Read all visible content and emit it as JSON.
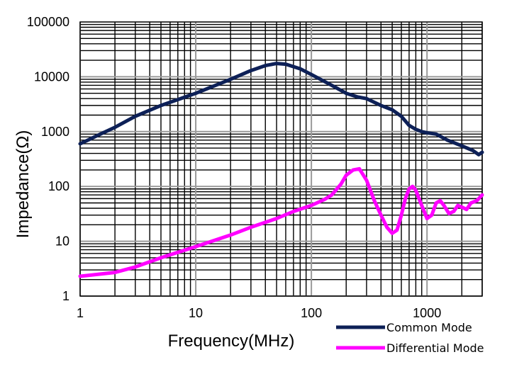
{
  "chart_data": {
    "type": "line",
    "title": "",
    "xlabel": "Frequency(MHz)",
    "ylabel": "Impedance(Ω)",
    "xscale": "log",
    "yscale": "log",
    "xlim": [
      1,
      3000
    ],
    "ylim": [
      1,
      100000
    ],
    "x_tick_values": [
      1,
      10,
      100,
      1000
    ],
    "x_tick_labels": [
      "1",
      "10",
      "100",
      "1000"
    ],
    "y_tick_values": [
      1,
      10,
      100,
      1000,
      10000,
      100000
    ],
    "y_tick_labels": [
      "1",
      "10",
      "100",
      "1000",
      "10000",
      "100000"
    ],
    "grid": true,
    "legend_position": "bottom-right",
    "series": [
      {
        "name": "Common Mode",
        "color": "#0d2057",
        "points": [
          [
            1,
            600
          ],
          [
            1.5,
            900
          ],
          [
            2,
            1200
          ],
          [
            3,
            1900
          ],
          [
            5,
            3000
          ],
          [
            10,
            5000
          ],
          [
            20,
            9000
          ],
          [
            30,
            13000
          ],
          [
            40,
            16000
          ],
          [
            50,
            17500
          ],
          [
            60,
            17000
          ],
          [
            80,
            14000
          ],
          [
            100,
            11000
          ],
          [
            150,
            7000
          ],
          [
            200,
            5000
          ],
          [
            250,
            4300
          ],
          [
            300,
            4000
          ],
          [
            400,
            3000
          ],
          [
            500,
            2500
          ],
          [
            600,
            1900
          ],
          [
            700,
            1300
          ],
          [
            800,
            1100
          ],
          [
            900,
            1000
          ],
          [
            1000,
            950
          ],
          [
            1200,
            900
          ],
          [
            1500,
            700
          ],
          [
            2000,
            550
          ],
          [
            2500,
            450
          ],
          [
            2800,
            380
          ],
          [
            3000,
            420
          ]
        ]
      },
      {
        "name": "Differential Mode",
        "color": "#ff00ff",
        "points": [
          [
            1,
            2.3
          ],
          [
            2,
            2.7
          ],
          [
            3,
            3.4
          ],
          [
            5,
            5
          ],
          [
            10,
            8
          ],
          [
            20,
            13
          ],
          [
            30,
            18
          ],
          [
            50,
            26
          ],
          [
            70,
            35
          ],
          [
            100,
            45
          ],
          [
            130,
            58
          ],
          [
            150,
            70
          ],
          [
            180,
            110
          ],
          [
            200,
            160
          ],
          [
            230,
            200
          ],
          [
            260,
            210
          ],
          [
            300,
            130
          ],
          [
            350,
            55
          ],
          [
            400,
            30
          ],
          [
            450,
            18
          ],
          [
            500,
            14
          ],
          [
            550,
            16
          ],
          [
            600,
            30
          ],
          [
            650,
            60
          ],
          [
            700,
            90
          ],
          [
            750,
            100
          ],
          [
            800,
            85
          ],
          [
            900,
            45
          ],
          [
            1000,
            26
          ],
          [
            1100,
            30
          ],
          [
            1200,
            50
          ],
          [
            1300,
            55
          ],
          [
            1400,
            45
          ],
          [
            1550,
            32
          ],
          [
            1700,
            35
          ],
          [
            1850,
            45
          ],
          [
            2000,
            42
          ],
          [
            2200,
            38
          ],
          [
            2400,
            50
          ],
          [
            2700,
            55
          ],
          [
            3000,
            70
          ]
        ]
      }
    ]
  }
}
